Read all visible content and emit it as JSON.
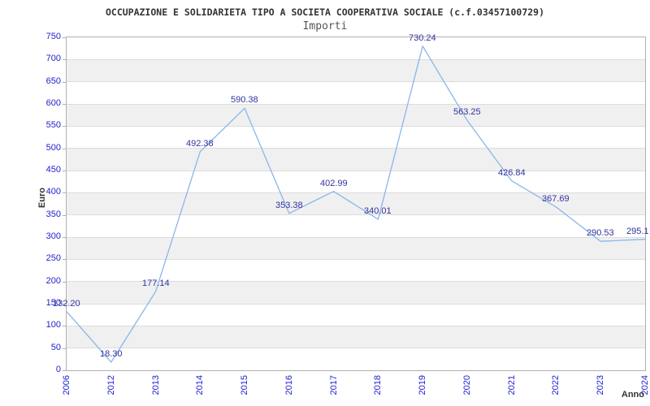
{
  "chart_data": {
    "type": "line",
    "title": "OCCUPAZIONE E SOLIDARIETA TIPO A SOCIETA COOPERATIVA SOCIALE (c.f.03457100729)",
    "subtitle": "Importi",
    "xlabel": "Anno",
    "ylabel": "Euro",
    "categories": [
      "2006",
      "2012",
      "2013",
      "2014",
      "2015",
      "2016",
      "2017",
      "2018",
      "2019",
      "2020",
      "2021",
      "2022",
      "2023",
      "2024"
    ],
    "values": [
      132.2,
      18.3,
      177.14,
      492.38,
      590.38,
      353.38,
      402.99,
      340.01,
      730.24,
      563.25,
      426.84,
      367.69,
      290.53,
      295.1
    ],
    "point_labels": [
      "132.20",
      "18.30",
      "177.14",
      "492.38",
      "590.38",
      "353.38",
      "402.99",
      "340.01",
      "730.24",
      "563.25",
      "426.84",
      "367.69",
      "290.53",
      "295.1"
    ],
    "ylim": [
      0,
      750
    ],
    "ytick_step": 50,
    "yticks": [
      0,
      50,
      100,
      150,
      200,
      250,
      300,
      350,
      400,
      450,
      500,
      550,
      600,
      650,
      700,
      750
    ],
    "grid": true,
    "legend_position": "none",
    "colors": {
      "series_line": "#8ab6e9",
      "point_label": "#32329e",
      "tick_label": "#2222cc",
      "band_fill": "#f0f0f0",
      "grid_line": "#dcdcdc",
      "plot_border": "#b0b0b0",
      "title_text": "#333333",
      "subtitle_text": "#555555"
    }
  }
}
